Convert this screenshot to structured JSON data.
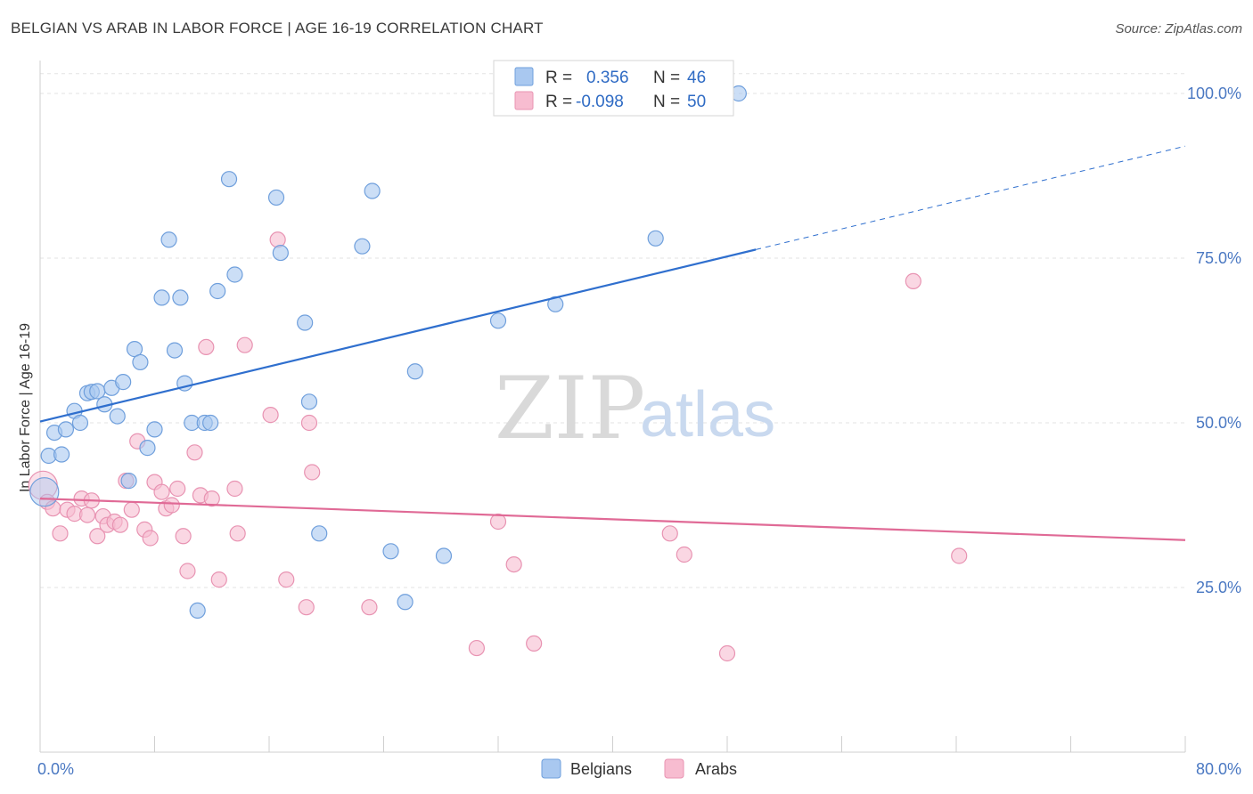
{
  "title": "BELGIAN VS ARAB IN LABOR FORCE | AGE 16-19 CORRELATION CHART",
  "source": "Source: ZipAtlas.com",
  "watermark": {
    "zip": "ZIP",
    "atlas": "atlas"
  },
  "colors": {
    "belgian_fill": "#a9c8f0",
    "belgian_stroke": "#6f9fdc",
    "belgian_line": "#2f6fce",
    "arab_fill": "#f7bcd0",
    "arab_stroke": "#e893b2",
    "arab_line": "#e06a96",
    "grid": "#e3e3e3",
    "axis_label": "#4a78c2"
  },
  "legend": {
    "rows": [
      {
        "r_label": "R =",
        "r_value": "0.356",
        "n_label": "N =",
        "n_value": "46"
      },
      {
        "r_label": "R =",
        "r_value": "-0.098",
        "n_label": "N =",
        "n_value": "50"
      }
    ]
  },
  "chart_data": {
    "type": "scatter",
    "title": "BELGIAN VS ARAB IN LABOR FORCE | AGE 16-19 CORRELATION CHART",
    "xlabel": "",
    "ylabel": "In Labor Force | Age 16-19",
    "xlim": [
      0,
      80
    ],
    "ylim": [
      0,
      105
    ],
    "x_tick_labels": [
      "0.0%",
      "80.0%"
    ],
    "y_ticks": [
      25,
      50,
      75,
      100
    ],
    "y_tick_labels": [
      "25.0%",
      "50.0%",
      "75.0%",
      "100.0%"
    ],
    "grid": true,
    "legend_position": "bottom-center",
    "series": [
      {
        "name": "Belgians",
        "points": [
          [
            0.3,
            39.5
          ],
          [
            0.6,
            45.0
          ],
          [
            1.0,
            48.5
          ],
          [
            1.5,
            45.2
          ],
          [
            1.8,
            49.0
          ],
          [
            2.4,
            51.8
          ],
          [
            2.8,
            50.0
          ],
          [
            3.3,
            54.5
          ],
          [
            3.6,
            54.7
          ],
          [
            4.0,
            54.8
          ],
          [
            4.5,
            52.8
          ],
          [
            5.0,
            55.3
          ],
          [
            5.4,
            51.0
          ],
          [
            5.8,
            56.2
          ],
          [
            6.2,
            41.2
          ],
          [
            6.6,
            61.2
          ],
          [
            7.0,
            59.2
          ],
          [
            7.5,
            46.2
          ],
          [
            8.0,
            49.0
          ],
          [
            8.5,
            69.0
          ],
          [
            9.0,
            77.8
          ],
          [
            9.4,
            61.0
          ],
          [
            9.8,
            69.0
          ],
          [
            10.1,
            56.0
          ],
          [
            10.6,
            50.0
          ],
          [
            11.0,
            21.5
          ],
          [
            11.5,
            50.0
          ],
          [
            11.9,
            50.0
          ],
          [
            12.4,
            70.0
          ],
          [
            13.2,
            87.0
          ],
          [
            13.6,
            72.5
          ],
          [
            16.5,
            84.2
          ],
          [
            16.8,
            75.8
          ],
          [
            18.5,
            65.2
          ],
          [
            18.8,
            53.2
          ],
          [
            19.5,
            33.2
          ],
          [
            22.5,
            76.8
          ],
          [
            23.2,
            85.2
          ],
          [
            24.5,
            30.5
          ],
          [
            25.5,
            22.8
          ],
          [
            26.2,
            57.8
          ],
          [
            28.2,
            29.8
          ],
          [
            32.0,
            65.5
          ],
          [
            36.0,
            68.0
          ],
          [
            43.0,
            78.0
          ],
          [
            48.8,
            100.0
          ]
        ]
      },
      {
        "name": "Arabs",
        "points": [
          [
            0.2,
            40.5
          ],
          [
            0.5,
            38.0
          ],
          [
            0.9,
            37.0
          ],
          [
            1.4,
            33.2
          ],
          [
            1.9,
            36.8
          ],
          [
            2.4,
            36.2
          ],
          [
            2.9,
            38.5
          ],
          [
            3.3,
            36.0
          ],
          [
            3.6,
            38.2
          ],
          [
            4.0,
            32.8
          ],
          [
            4.4,
            35.8
          ],
          [
            4.7,
            34.5
          ],
          [
            5.2,
            35.0
          ],
          [
            5.6,
            34.5
          ],
          [
            6.0,
            41.2
          ],
          [
            6.4,
            36.8
          ],
          [
            6.8,
            47.2
          ],
          [
            7.3,
            33.8
          ],
          [
            7.7,
            32.5
          ],
          [
            8.0,
            41.0
          ],
          [
            8.5,
            39.5
          ],
          [
            8.8,
            37.0
          ],
          [
            9.2,
            37.5
          ],
          [
            9.6,
            40.0
          ],
          [
            10.0,
            32.8
          ],
          [
            10.3,
            27.5
          ],
          [
            10.8,
            45.5
          ],
          [
            11.2,
            39.0
          ],
          [
            11.6,
            61.5
          ],
          [
            12.0,
            38.5
          ],
          [
            12.5,
            26.2
          ],
          [
            13.6,
            40.0
          ],
          [
            13.8,
            33.2
          ],
          [
            16.1,
            51.2
          ],
          [
            16.6,
            77.8
          ],
          [
            17.2,
            26.2
          ],
          [
            18.6,
            22.0
          ],
          [
            18.8,
            50.0
          ],
          [
            19.0,
            42.5
          ],
          [
            14.3,
            61.8
          ],
          [
            23.0,
            22.0
          ],
          [
            30.5,
            15.8
          ],
          [
            32.0,
            35.0
          ],
          [
            33.1,
            28.5
          ],
          [
            34.5,
            16.5
          ],
          [
            44.0,
            33.2
          ],
          [
            45.0,
            30.0
          ],
          [
            48.0,
            15.0
          ],
          [
            61.0,
            71.5
          ],
          [
            64.2,
            29.8
          ]
        ]
      }
    ],
    "trendlines": [
      {
        "series": "Belgians",
        "solid": [
          [
            0,
            50.2
          ],
          [
            50,
            76.3
          ]
        ],
        "dashed": [
          [
            50,
            76.3
          ],
          [
            80,
            92.0
          ]
        ]
      },
      {
        "series": "Arabs",
        "solid": [
          [
            0,
            38.5
          ],
          [
            80,
            32.2
          ]
        ]
      }
    ]
  }
}
